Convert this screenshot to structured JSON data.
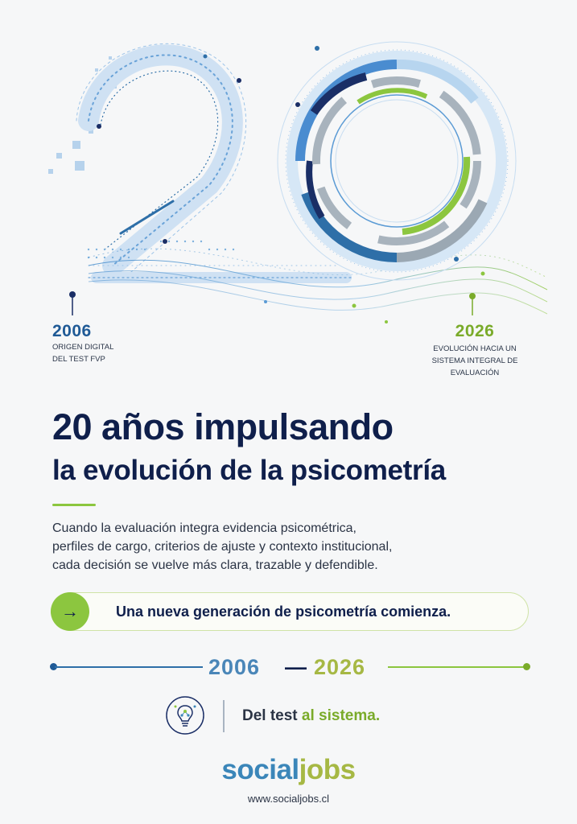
{
  "milestones": {
    "start": {
      "year": "2006",
      "caption_lines": [
        "ORIGEN DIGITAL",
        "DEL TEST FVP"
      ]
    },
    "end": {
      "year": "2026",
      "caption_lines": [
        "EVOLUCIÓN HACIA UN",
        "SISTEMA INTEGRAL DE",
        "EVALUACIÓN"
      ]
    }
  },
  "headline": {
    "line1": "20  años impulsando",
    "line2": "la evolución de la psicometría"
  },
  "body_lines": [
    "Cuando la evaluación integra evidencia psicométrica,",
    "perfiles de cargo, criterios de ajuste y contexto institucional,",
    "cada decisión se vuelve más clara, trazable y defendible."
  ],
  "cta": {
    "arrow": "→",
    "text": "Una nueva generación de psicometría comienza."
  },
  "timeline": {
    "start": "2006",
    "separator": "—",
    "end": "2026"
  },
  "tagline": {
    "part1": "Del test ",
    "part2": "al sistema."
  },
  "brand": {
    "part1": "social",
    "part2": "jobs",
    "url": "www.socialjobs.cl"
  },
  "colors": {
    "navy": "#0f1f4b",
    "blue": "#1f5a96",
    "light_blue": "#4a86b8",
    "green": "#8cc63f",
    "olive": "#a6b844"
  },
  "icons": [
    "arrow-right-icon",
    "lightbulb-network-icon"
  ]
}
